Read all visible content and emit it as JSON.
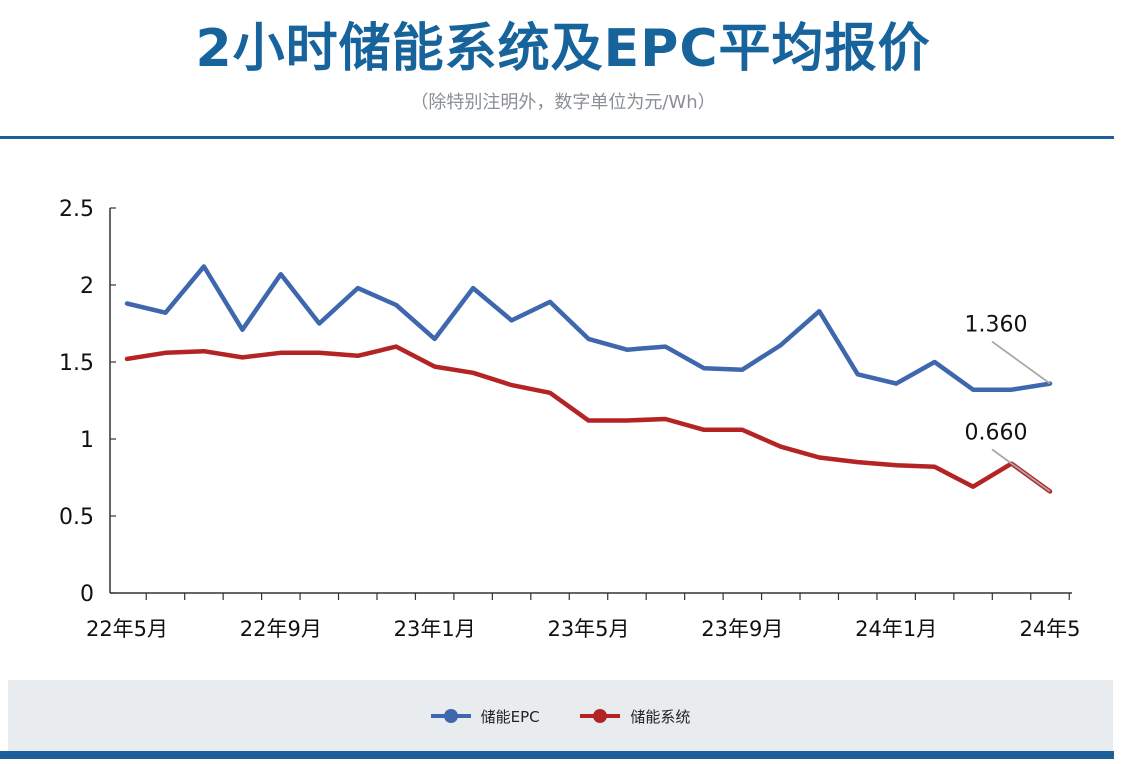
{
  "header": {
    "title": "2小时储能系统及EPC平均报价",
    "subtitle": "（除特别注明外，数字单位为元/Wh）"
  },
  "colors": {
    "title": "#17639c",
    "rule": "#1d5f9a",
    "epc": "#3f67ae",
    "system": "#b52424",
    "legend_band": "#e9ecef"
  },
  "legend": {
    "items": [
      {
        "label": "储能EPC",
        "color": "#3f67ae"
      },
      {
        "label": "储能系统",
        "color": "#b52424"
      }
    ]
  },
  "chart_data": {
    "type": "line",
    "x": [
      "22年5月",
      "22年6月",
      "22年7月",
      "22年8月",
      "22年9月",
      "22年10月",
      "22年11月",
      "22年12月",
      "23年1月",
      "23年2月",
      "23年3月",
      "23年4月",
      "23年5月",
      "23年6月",
      "23年7月",
      "23年8月",
      "23年9月",
      "23年10月",
      "23年11月",
      "23年12月",
      "24年1月",
      "24年2月",
      "24年3月",
      "24年4月",
      "24年5月"
    ],
    "x_tick_labels": [
      "22年5月",
      "22年9月",
      "23年1月",
      "23年5月",
      "23年9月",
      "24年1月",
      "24年5"
    ],
    "y_ticks": [
      "0",
      "0.5",
      "1",
      "1.5",
      "2",
      "2.5"
    ],
    "ylim": [
      0,
      2.5
    ],
    "series": [
      {
        "name": "储能EPC",
        "color": "#3f67ae",
        "values": [
          1.88,
          1.82,
          2.12,
          1.71,
          2.07,
          1.75,
          1.98,
          1.87,
          1.65,
          1.98,
          1.77,
          1.89,
          1.65,
          1.58,
          1.6,
          1.46,
          1.45,
          1.61,
          1.83,
          1.42,
          1.36,
          1.5,
          1.32,
          1.32,
          1.36
        ]
      },
      {
        "name": "储能系统",
        "color": "#b52424",
        "values": [
          1.52,
          1.56,
          1.57,
          1.53,
          1.56,
          1.56,
          1.54,
          1.6,
          1.47,
          1.43,
          1.35,
          1.3,
          1.12,
          1.12,
          1.13,
          1.06,
          1.06,
          0.95,
          0.88,
          0.85,
          0.83,
          0.82,
          0.69,
          0.84,
          0.66
        ]
      }
    ],
    "annotations": [
      {
        "text": "1.360",
        "series": 0
      },
      {
        "text": "0.660",
        "series": 1
      }
    ],
    "grid": false
  }
}
